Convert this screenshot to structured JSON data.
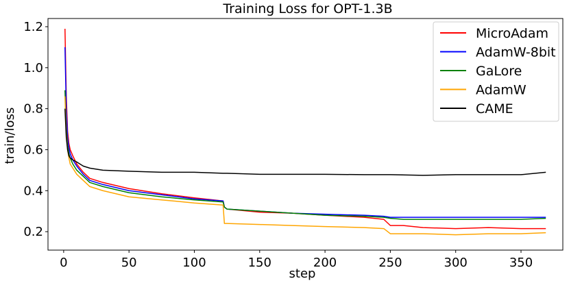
{
  "chart_data": {
    "type": "line",
    "title": "Training Loss for OPT-1.3B",
    "xlabel": "step",
    "ylabel": "train/loss",
    "xlim": [
      -12,
      382
    ],
    "ylim": [
      0.11,
      1.24
    ],
    "xticks": [
      0,
      50,
      100,
      150,
      200,
      250,
      300,
      350
    ],
    "yticks": [
      0.2,
      0.4,
      0.6,
      0.8,
      1.0,
      1.2
    ],
    "xtick_labels": [
      "0",
      "50",
      "100",
      "150",
      "200",
      "250",
      "300",
      "350"
    ],
    "ytick_labels": [
      "0.2",
      "0.4",
      "0.6",
      "0.8",
      "1.0",
      "1.2"
    ],
    "grid": false,
    "legend_position": "top-right",
    "series": [
      {
        "name": "MicroAdam",
        "color": "#ff0000",
        "x": [
          1,
          2,
          3,
          4,
          5,
          7,
          10,
          15,
          20,
          30,
          50,
          75,
          100,
          122,
          123,
          125,
          150,
          175,
          200,
          230,
          245,
          250,
          260,
          275,
          300,
          325,
          350,
          369
        ],
        "y": [
          1.19,
          0.86,
          0.69,
          0.63,
          0.6,
          0.57,
          0.53,
          0.49,
          0.46,
          0.44,
          0.41,
          0.385,
          0.365,
          0.35,
          0.32,
          0.31,
          0.295,
          0.29,
          0.28,
          0.27,
          0.26,
          0.23,
          0.23,
          0.22,
          0.215,
          0.22,
          0.215,
          0.215
        ]
      },
      {
        "name": "AdamW-8bit",
        "color": "#0000ff",
        "x": [
          1,
          2,
          3,
          4,
          5,
          7,
          10,
          15,
          20,
          30,
          50,
          75,
          100,
          122,
          123,
          125,
          150,
          175,
          200,
          230,
          245,
          250,
          260,
          275,
          300,
          325,
          350,
          369
        ],
        "y": [
          1.1,
          0.8,
          0.66,
          0.61,
          0.58,
          0.55,
          0.52,
          0.48,
          0.45,
          0.43,
          0.4,
          0.38,
          0.36,
          0.35,
          0.32,
          0.31,
          0.3,
          0.29,
          0.285,
          0.28,
          0.275,
          0.27,
          0.27,
          0.27,
          0.27,
          0.27,
          0.27,
          0.27
        ]
      },
      {
        "name": "GaLore",
        "color": "#008000",
        "x": [
          1,
          2,
          3,
          4,
          5,
          7,
          10,
          15,
          20,
          30,
          50,
          75,
          100,
          122,
          123,
          125,
          150,
          175,
          200,
          230,
          245,
          250,
          260,
          275,
          300,
          325,
          350,
          369
        ],
        "y": [
          0.89,
          0.7,
          0.62,
          0.58,
          0.56,
          0.53,
          0.5,
          0.47,
          0.44,
          0.42,
          0.39,
          0.37,
          0.355,
          0.345,
          0.32,
          0.31,
          0.3,
          0.29,
          0.28,
          0.275,
          0.27,
          0.265,
          0.26,
          0.26,
          0.26,
          0.26,
          0.26,
          0.265
        ]
      },
      {
        "name": "AdamW",
        "color": "#ffa500",
        "x": [
          1,
          2,
          3,
          4,
          5,
          7,
          10,
          15,
          20,
          30,
          50,
          75,
          100,
          122,
          123,
          125,
          150,
          175,
          200,
          230,
          245,
          250,
          260,
          275,
          300,
          325,
          350,
          369
        ],
        "y": [
          0.86,
          0.68,
          0.6,
          0.56,
          0.53,
          0.51,
          0.48,
          0.45,
          0.42,
          0.4,
          0.37,
          0.355,
          0.34,
          0.33,
          0.24,
          0.24,
          0.235,
          0.23,
          0.225,
          0.22,
          0.215,
          0.19,
          0.19,
          0.19,
          0.185,
          0.19,
          0.19,
          0.195
        ]
      },
      {
        "name": "CAME",
        "color": "#000000",
        "x": [
          1,
          2,
          3,
          4,
          5,
          7,
          10,
          15,
          20,
          30,
          50,
          75,
          100,
          122,
          125,
          150,
          175,
          200,
          230,
          250,
          275,
          300,
          325,
          350,
          369
        ],
        "y": [
          0.8,
          0.66,
          0.6,
          0.57,
          0.56,
          0.55,
          0.54,
          0.52,
          0.51,
          0.5,
          0.495,
          0.49,
          0.49,
          0.485,
          0.485,
          0.48,
          0.48,
          0.48,
          0.478,
          0.478,
          0.475,
          0.478,
          0.478,
          0.478,
          0.49
        ]
      }
    ]
  }
}
